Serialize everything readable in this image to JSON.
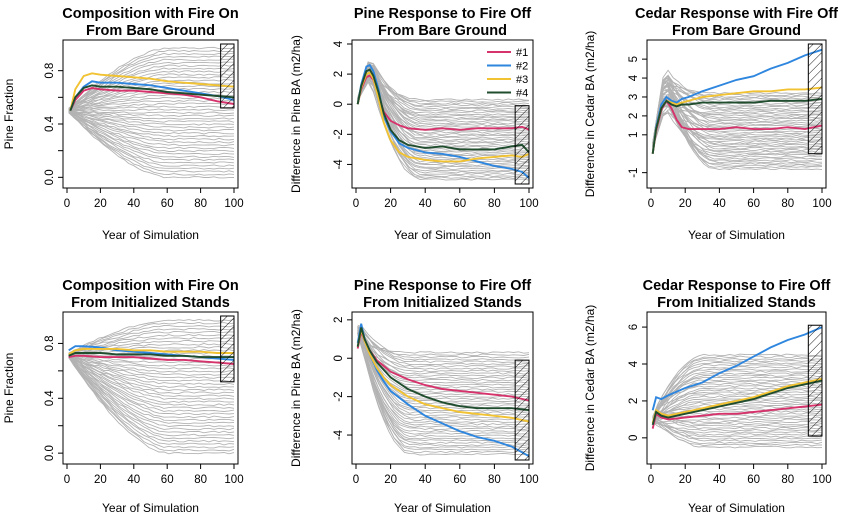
{
  "colors": {
    "background_lines": "#b3b3b3",
    "#1": "#d6336c",
    "#2": "#2e86de",
    "#3": "#f1c232",
    "#4": "#1f4d2e",
    "hatch_box": "#000000"
  },
  "legend": {
    "entries": [
      "#1",
      "#2",
      "#3",
      "#4"
    ],
    "placement": "top-right of middle-top panel"
  },
  "chart_data": [
    {
      "type": "line",
      "title": "Composition with Fire On\nFrom Bare Ground",
      "xlabel": "Year of Simulation",
      "ylabel": "Pine Fraction",
      "xlim": [
        0,
        100
      ],
      "ylim": [
        -0.05,
        1.0
      ],
      "xticks": [
        "0",
        "20",
        "40",
        "60",
        "80",
        "100"
      ],
      "yticks": [
        "0.0",
        "0.4",
        "0.8"
      ],
      "ytick_values": [
        0.0,
        0.4,
        0.8
      ],
      "extra_ytick_values": [
        0.2,
        0.6
      ],
      "hatched_region": {
        "x": [
          92,
          100
        ],
        "y": [
          0.52,
          1.0
        ]
      },
      "background_bundle": {
        "count": 45,
        "start": 0.5,
        "ends_low": 0.0,
        "ends_high": 0.97,
        "peak_year": 12
      },
      "series": [
        {
          "name": "#1",
          "x": [
            2,
            5,
            10,
            15,
            20,
            30,
            40,
            50,
            60,
            70,
            80,
            90,
            100
          ],
          "y": [
            0.5,
            0.58,
            0.65,
            0.67,
            0.66,
            0.65,
            0.65,
            0.64,
            0.63,
            0.62,
            0.6,
            0.57,
            0.55
          ]
        },
        {
          "name": "#2",
          "x": [
            2,
            5,
            10,
            15,
            20,
            30,
            40,
            50,
            60,
            70,
            80,
            90,
            100
          ],
          "y": [
            0.5,
            0.6,
            0.68,
            0.72,
            0.71,
            0.71,
            0.7,
            0.69,
            0.67,
            0.65,
            0.63,
            0.61,
            0.58
          ]
        },
        {
          "name": "#3",
          "x": [
            2,
            5,
            10,
            15,
            20,
            30,
            40,
            50,
            60,
            70,
            80,
            90,
            100
          ],
          "y": [
            0.5,
            0.66,
            0.76,
            0.78,
            0.77,
            0.76,
            0.75,
            0.74,
            0.72,
            0.71,
            0.7,
            0.69,
            0.68
          ]
        },
        {
          "name": "#4",
          "x": [
            2,
            5,
            10,
            15,
            20,
            30,
            40,
            50,
            60,
            70,
            80,
            90,
            100
          ],
          "y": [
            0.5,
            0.6,
            0.67,
            0.69,
            0.68,
            0.68,
            0.67,
            0.66,
            0.64,
            0.63,
            0.62,
            0.61,
            0.6
          ]
        }
      ]
    },
    {
      "type": "line",
      "title": "Pine Response to Fire Off\nFrom Bare Ground",
      "xlabel": "Year of Simulation",
      "ylabel": "Difference in Pine BA (m2/ha)",
      "xlim": [
        0,
        100
      ],
      "ylim": [
        -5.3,
        4.0
      ],
      "xticks": [
        "0",
        "20",
        "40",
        "60",
        "80",
        "100"
      ],
      "yticks": [
        "-4",
        "-2",
        "0",
        "2",
        "4"
      ],
      "ytick_values": [
        -4,
        -2,
        0,
        2,
        4
      ],
      "hatched_region": {
        "x": [
          92,
          100
        ],
        "y": [
          -5.3,
          -0.1
        ]
      },
      "background_bundle": {
        "count": 45,
        "start": 0.0,
        "peak": 3.2,
        "peak_year": 8,
        "ends_low": -5.0,
        "ends_high": 0.3
      },
      "series": [
        {
          "name": "#1",
          "x": [
            1,
            3,
            6,
            8,
            10,
            13,
            16,
            20,
            25,
            30,
            40,
            50,
            60,
            70,
            80,
            90,
            96,
            100
          ],
          "y": [
            0.0,
            1.0,
            1.8,
            1.9,
            1.6,
            0.6,
            -0.5,
            -1.1,
            -1.4,
            -1.6,
            -1.7,
            -1.6,
            -1.7,
            -1.6,
            -1.6,
            -1.6,
            -1.5,
            -1.7
          ]
        },
        {
          "name": "#2",
          "x": [
            1,
            3,
            6,
            8,
            10,
            13,
            16,
            20,
            25,
            30,
            40,
            50,
            60,
            70,
            80,
            90,
            96,
            100
          ],
          "y": [
            0.0,
            1.3,
            2.5,
            2.6,
            2.2,
            1.0,
            -0.8,
            -1.8,
            -2.6,
            -2.9,
            -3.2,
            -3.3,
            -3.5,
            -3.8,
            -4.1,
            -4.3,
            -4.5,
            -4.9
          ]
        },
        {
          "name": "#3",
          "x": [
            1,
            3,
            6,
            8,
            10,
            13,
            16,
            20,
            25,
            30,
            40,
            50,
            60,
            70,
            80,
            90,
            96,
            100
          ],
          "y": [
            0.0,
            1.1,
            2.0,
            2.1,
            1.7,
            0.4,
            -1.2,
            -2.4,
            -3.2,
            -3.5,
            -3.7,
            -3.8,
            -3.8,
            -3.6,
            -3.5,
            -3.4,
            -3.5,
            -3.3
          ]
        },
        {
          "name": "#4",
          "x": [
            1,
            3,
            6,
            8,
            10,
            13,
            16,
            20,
            25,
            30,
            40,
            50,
            60,
            70,
            80,
            90,
            96,
            100
          ],
          "y": [
            0.0,
            1.2,
            2.2,
            2.3,
            1.9,
            0.8,
            -0.6,
            -1.7,
            -2.4,
            -2.7,
            -2.9,
            -2.8,
            -3.0,
            -3.0,
            -3.0,
            -2.8,
            -2.7,
            -3.2
          ]
        }
      ]
    },
    {
      "type": "line",
      "title": "Cedar Response with Fire Off\nFrom Bare Ground",
      "xlabel": "Year of Simulation",
      "ylabel": "Difference in Cedar BA (m2/ha)",
      "xlim": [
        0,
        100
      ],
      "ylim": [
        -1.6,
        5.8
      ],
      "xticks": [
        "0",
        "20",
        "40",
        "60",
        "80",
        "100"
      ],
      "yticks": [
        "-1",
        "1",
        "2",
        "3",
        "4",
        "5"
      ],
      "ytick_values": [
        -1,
        1,
        2,
        3,
        4,
        5
      ],
      "hatched_region": {
        "x": [
          92,
          100
        ],
        "y": [
          0.0,
          5.8
        ]
      },
      "background_bundle": {
        "count": 45,
        "start": 0.0,
        "peak": 4.6,
        "peak_year": 8,
        "ends_low": -0.8,
        "ends_high": 3.2
      },
      "series": [
        {
          "name": "#1",
          "x": [
            1,
            3,
            6,
            9,
            12,
            15,
            18,
            22,
            30,
            40,
            50,
            60,
            70,
            80,
            90,
            100
          ],
          "y": [
            0.0,
            1.2,
            2.3,
            2.8,
            2.4,
            1.8,
            1.4,
            1.3,
            1.3,
            1.3,
            1.4,
            1.3,
            1.3,
            1.4,
            1.3,
            1.5
          ]
        },
        {
          "name": "#2",
          "x": [
            1,
            3,
            6,
            9,
            12,
            15,
            18,
            22,
            30,
            40,
            50,
            60,
            70,
            80,
            90,
            100
          ],
          "y": [
            0.0,
            1.4,
            2.6,
            3.0,
            2.8,
            2.7,
            2.9,
            3.0,
            3.3,
            3.6,
            3.9,
            4.1,
            4.5,
            4.8,
            5.2,
            5.5
          ]
        },
        {
          "name": "#3",
          "x": [
            1,
            3,
            6,
            9,
            12,
            15,
            18,
            22,
            30,
            40,
            50,
            60,
            70,
            80,
            90,
            100
          ],
          "y": [
            0.0,
            1.3,
            2.4,
            2.8,
            2.7,
            2.6,
            2.7,
            2.8,
            3.0,
            3.1,
            3.2,
            3.3,
            3.3,
            3.4,
            3.4,
            3.5
          ]
        },
        {
          "name": "#4",
          "x": [
            1,
            3,
            6,
            9,
            12,
            15,
            18,
            22,
            30,
            40,
            50,
            60,
            70,
            80,
            90,
            100
          ],
          "y": [
            0.0,
            1.3,
            2.4,
            2.8,
            2.6,
            2.5,
            2.6,
            2.6,
            2.7,
            2.7,
            2.7,
            2.7,
            2.8,
            2.8,
            2.8,
            2.9
          ]
        }
      ]
    },
    {
      "type": "line",
      "title": "Composition with Fire On\nFrom Initialized Stands",
      "xlabel": "Year of Simulation",
      "ylabel": "Pine Fraction",
      "xlim": [
        0,
        100
      ],
      "ylim": [
        -0.05,
        1.0
      ],
      "xticks": [
        "0",
        "20",
        "40",
        "60",
        "80",
        "100"
      ],
      "yticks": [
        "0.0",
        "0.4",
        "0.8"
      ],
      "ytick_values": [
        0.0,
        0.4,
        0.8
      ],
      "extra_ytick_values": [
        0.2,
        0.6
      ],
      "hatched_region": {
        "x": [
          92,
          100
        ],
        "y": [
          0.52,
          1.0
        ]
      },
      "background_bundle": {
        "count": 45,
        "start": 0.72,
        "ends_low": 0.0,
        "ends_high": 0.97,
        "peak_year": 0
      },
      "series": [
        {
          "name": "#1",
          "x": [
            1,
            5,
            10,
            20,
            30,
            40,
            50,
            60,
            70,
            80,
            90,
            100
          ],
          "y": [
            0.7,
            0.71,
            0.71,
            0.7,
            0.7,
            0.7,
            0.69,
            0.68,
            0.68,
            0.67,
            0.66,
            0.65
          ]
        },
        {
          "name": "#2",
          "x": [
            1,
            5,
            10,
            20,
            30,
            40,
            50,
            60,
            70,
            80,
            90,
            100
          ],
          "y": [
            0.75,
            0.78,
            0.78,
            0.77,
            0.75,
            0.74,
            0.73,
            0.72,
            0.71,
            0.7,
            0.69,
            0.68
          ]
        },
        {
          "name": "#3",
          "x": [
            1,
            5,
            10,
            20,
            30,
            40,
            50,
            60,
            70,
            80,
            90,
            100
          ],
          "y": [
            0.72,
            0.75,
            0.76,
            0.76,
            0.76,
            0.75,
            0.75,
            0.74,
            0.74,
            0.74,
            0.73,
            0.73
          ]
        },
        {
          "name": "#4",
          "x": [
            1,
            5,
            10,
            20,
            30,
            40,
            50,
            60,
            70,
            80,
            90,
            100
          ],
          "y": [
            0.71,
            0.73,
            0.73,
            0.73,
            0.72,
            0.72,
            0.72,
            0.71,
            0.71,
            0.7,
            0.7,
            0.7
          ]
        }
      ]
    },
    {
      "type": "line",
      "title": "Pine Response to Fire Off\nFrom Initialized Stands",
      "xlabel": "Year of Simulation",
      "ylabel": "Difference in Pine BA (m2/ha)",
      "xlim": [
        0,
        100
      ],
      "ylim": [
        -5.3,
        2.2
      ],
      "xticks": [
        "0",
        "20",
        "40",
        "60",
        "80",
        "100"
      ],
      "yticks": [
        "-4",
        "-2",
        "0",
        "2"
      ],
      "ytick_values": [
        -4,
        -2,
        0,
        2
      ],
      "hatched_region": {
        "x": [
          92,
          100
        ],
        "y": [
          -5.3,
          -0.1
        ]
      },
      "background_bundle": {
        "count": 45,
        "start": 1.6,
        "peak": 1.8,
        "peak_year": 2,
        "ends_low": -5.0,
        "ends_high": 0.3
      },
      "series": [
        {
          "name": "#1",
          "x": [
            1,
            3,
            5,
            8,
            12,
            16,
            20,
            30,
            40,
            50,
            60,
            70,
            80,
            90,
            100
          ],
          "y": [
            0.5,
            1.4,
            0.9,
            0.4,
            -0.1,
            -0.4,
            -0.7,
            -1.1,
            -1.4,
            -1.6,
            -1.7,
            -1.8,
            -1.9,
            -2.0,
            -2.2
          ]
        },
        {
          "name": "#2",
          "x": [
            1,
            3,
            5,
            8,
            12,
            16,
            20,
            30,
            40,
            50,
            60,
            70,
            80,
            90,
            100
          ],
          "y": [
            0.8,
            1.8,
            1.0,
            0.2,
            -0.6,
            -1.2,
            -1.7,
            -2.4,
            -3.0,
            -3.4,
            -3.8,
            -4.1,
            -4.3,
            -4.6,
            -5.1
          ]
        },
        {
          "name": "#3",
          "x": [
            1,
            3,
            5,
            8,
            12,
            16,
            20,
            30,
            40,
            50,
            60,
            70,
            80,
            90,
            100
          ],
          "y": [
            0.6,
            1.5,
            0.9,
            0.2,
            -0.5,
            -1.0,
            -1.4,
            -2.0,
            -2.4,
            -2.6,
            -2.8,
            -2.9,
            -3.0,
            -3.1,
            -3.3
          ]
        },
        {
          "name": "#4",
          "x": [
            1,
            3,
            5,
            8,
            12,
            16,
            20,
            30,
            40,
            50,
            60,
            70,
            80,
            90,
            100
          ],
          "y": [
            0.6,
            1.6,
            1.0,
            0.4,
            -0.2,
            -0.6,
            -1.0,
            -1.6,
            -2.0,
            -2.3,
            -2.5,
            -2.6,
            -2.6,
            -2.6,
            -2.7
          ]
        }
      ]
    },
    {
      "type": "line",
      "title": "Cedar Response to Fire Off\nFrom Initialized Stands",
      "xlabel": "Year of Simulation",
      "ylabel": "Difference in Cedar BA (m2/ha)",
      "xlim": [
        0,
        100
      ],
      "ylim": [
        -1.2,
        6.6
      ],
      "xticks": [
        "0",
        "20",
        "40",
        "60",
        "80",
        "100"
      ],
      "yticks": [
        "0",
        "2",
        "4",
        "6"
      ],
      "ytick_values": [
        0,
        2,
        4,
        6
      ],
      "hatched_region": {
        "x": [
          92,
          100
        ],
        "y": [
          0.1,
          6.1
        ]
      },
      "background_bundle": {
        "count": 45,
        "start": 0.8,
        "peak": 1.5,
        "peak_year": 2,
        "ends_low": -0.5,
        "ends_high": 4.5
      },
      "series": [
        {
          "name": "#1",
          "x": [
            1,
            3,
            6,
            10,
            20,
            30,
            40,
            50,
            60,
            70,
            80,
            90,
            100
          ],
          "y": [
            0.5,
            1.3,
            1.1,
            1.0,
            1.1,
            1.2,
            1.3,
            1.3,
            1.4,
            1.5,
            1.6,
            1.7,
            1.8
          ]
        },
        {
          "name": "#2",
          "x": [
            1,
            3,
            6,
            10,
            20,
            30,
            40,
            50,
            60,
            70,
            80,
            90,
            100
          ],
          "y": [
            1.5,
            2.2,
            2.1,
            2.3,
            2.7,
            3.0,
            3.5,
            3.9,
            4.4,
            4.9,
            5.3,
            5.6,
            6.0
          ]
        },
        {
          "name": "#3",
          "x": [
            1,
            3,
            6,
            10,
            20,
            30,
            40,
            50,
            60,
            70,
            80,
            90,
            100
          ],
          "y": [
            0.8,
            1.5,
            1.3,
            1.2,
            1.4,
            1.6,
            1.8,
            2.0,
            2.2,
            2.5,
            2.8,
            3.0,
            3.2
          ]
        },
        {
          "name": "#4",
          "x": [
            1,
            3,
            6,
            10,
            20,
            30,
            40,
            50,
            60,
            70,
            80,
            90,
            100
          ],
          "y": [
            0.7,
            1.4,
            1.2,
            1.1,
            1.3,
            1.5,
            1.7,
            1.9,
            2.1,
            2.4,
            2.7,
            2.9,
            3.1
          ]
        }
      ]
    }
  ]
}
